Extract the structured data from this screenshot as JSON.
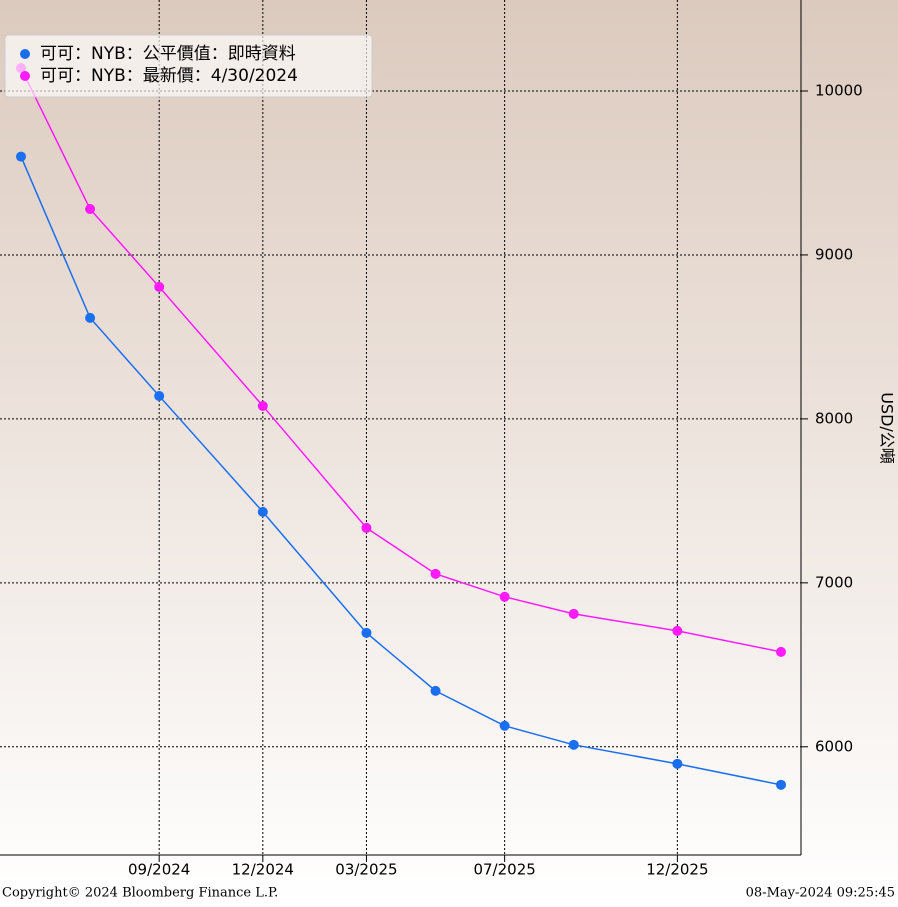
{
  "chart_data": {
    "type": "line",
    "x": [
      "05/2024",
      "07/2024",
      "09/2024",
      "12/2024",
      "03/2025",
      "05/2025",
      "07/2025",
      "09/2025",
      "12/2025",
      "03/2026"
    ],
    "series": [
      {
        "name": "可可：NYB：公平價值：即時資料",
        "color": "#1a6ef0",
        "values": [
          9600,
          8616,
          8140,
          7433,
          6695,
          6341,
          6128,
          6012,
          5896,
          5768
        ]
      },
      {
        "name": "可可：NYB：最新價：4/30/2024",
        "color": "#ff1aff",
        "values": [
          10140,
          9280,
          8805,
          8079,
          7335,
          7055,
          6915,
          6811,
          6707,
          6579
        ]
      }
    ],
    "xticks": [
      "09/2024",
      "12/2024",
      "03/2025",
      "07/2025",
      "12/2025"
    ],
    "ylim": [
      5340,
      10555
    ],
    "yticks": [
      6000,
      7000,
      8000,
      9000,
      10000
    ],
    "y_axis_label": "USD/公噸",
    "y_axis_side": "right",
    "grid": true,
    "legend": "upper left",
    "footer_left": "Copyright© 2024 Bloomberg Finance L.P.",
    "footer_right": "08-May-2024 09:25:45"
  }
}
